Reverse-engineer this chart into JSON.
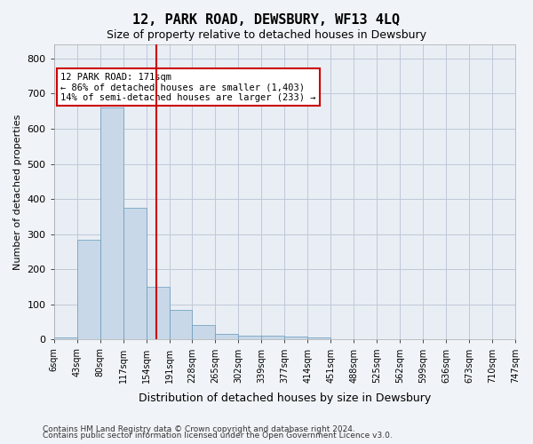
{
  "title": "12, PARK ROAD, DEWSBURY, WF13 4LQ",
  "subtitle": "Size of property relative to detached houses in Dewsbury",
  "xlabel": "Distribution of detached houses by size in Dewsbury",
  "ylabel": "Number of detached properties",
  "bin_labels": [
    "6sqm",
    "43sqm",
    "80sqm",
    "117sqm",
    "154sqm",
    "191sqm",
    "228sqm",
    "265sqm",
    "302sqm",
    "339sqm",
    "377sqm",
    "414sqm",
    "451sqm",
    "488sqm",
    "525sqm",
    "562sqm",
    "599sqm",
    "636sqm",
    "673sqm",
    "710sqm",
    "747sqm"
  ],
  "bar_values": [
    7,
    285,
    660,
    375,
    150,
    85,
    42,
    15,
    12,
    12,
    8,
    5,
    0,
    0,
    0,
    0,
    0,
    0,
    0,
    0
  ],
  "bar_color": "#c8d8e8",
  "bar_edge_color": "#6699bb",
  "red_line_x": 4.62,
  "red_line_label": "12 PARK ROAD: 171sqm",
  "annotation_line1": "← 86% of detached houses are smaller (1,403)",
  "annotation_line2": "14% of semi-detached houses are larger (233) →",
  "annotation_box_color": "#ffffff",
  "annotation_box_edge": "#cc0000",
  "ylim": [
    0,
    840
  ],
  "yticks": [
    0,
    100,
    200,
    300,
    400,
    500,
    600,
    700,
    800
  ],
  "grid_color": "#c0c8d8",
  "background_color": "#e8eef4",
  "footer1": "Contains HM Land Registry data © Crown copyright and database right 2024.",
  "footer2": "Contains public sector information licensed under the Open Government Licence v3.0."
}
